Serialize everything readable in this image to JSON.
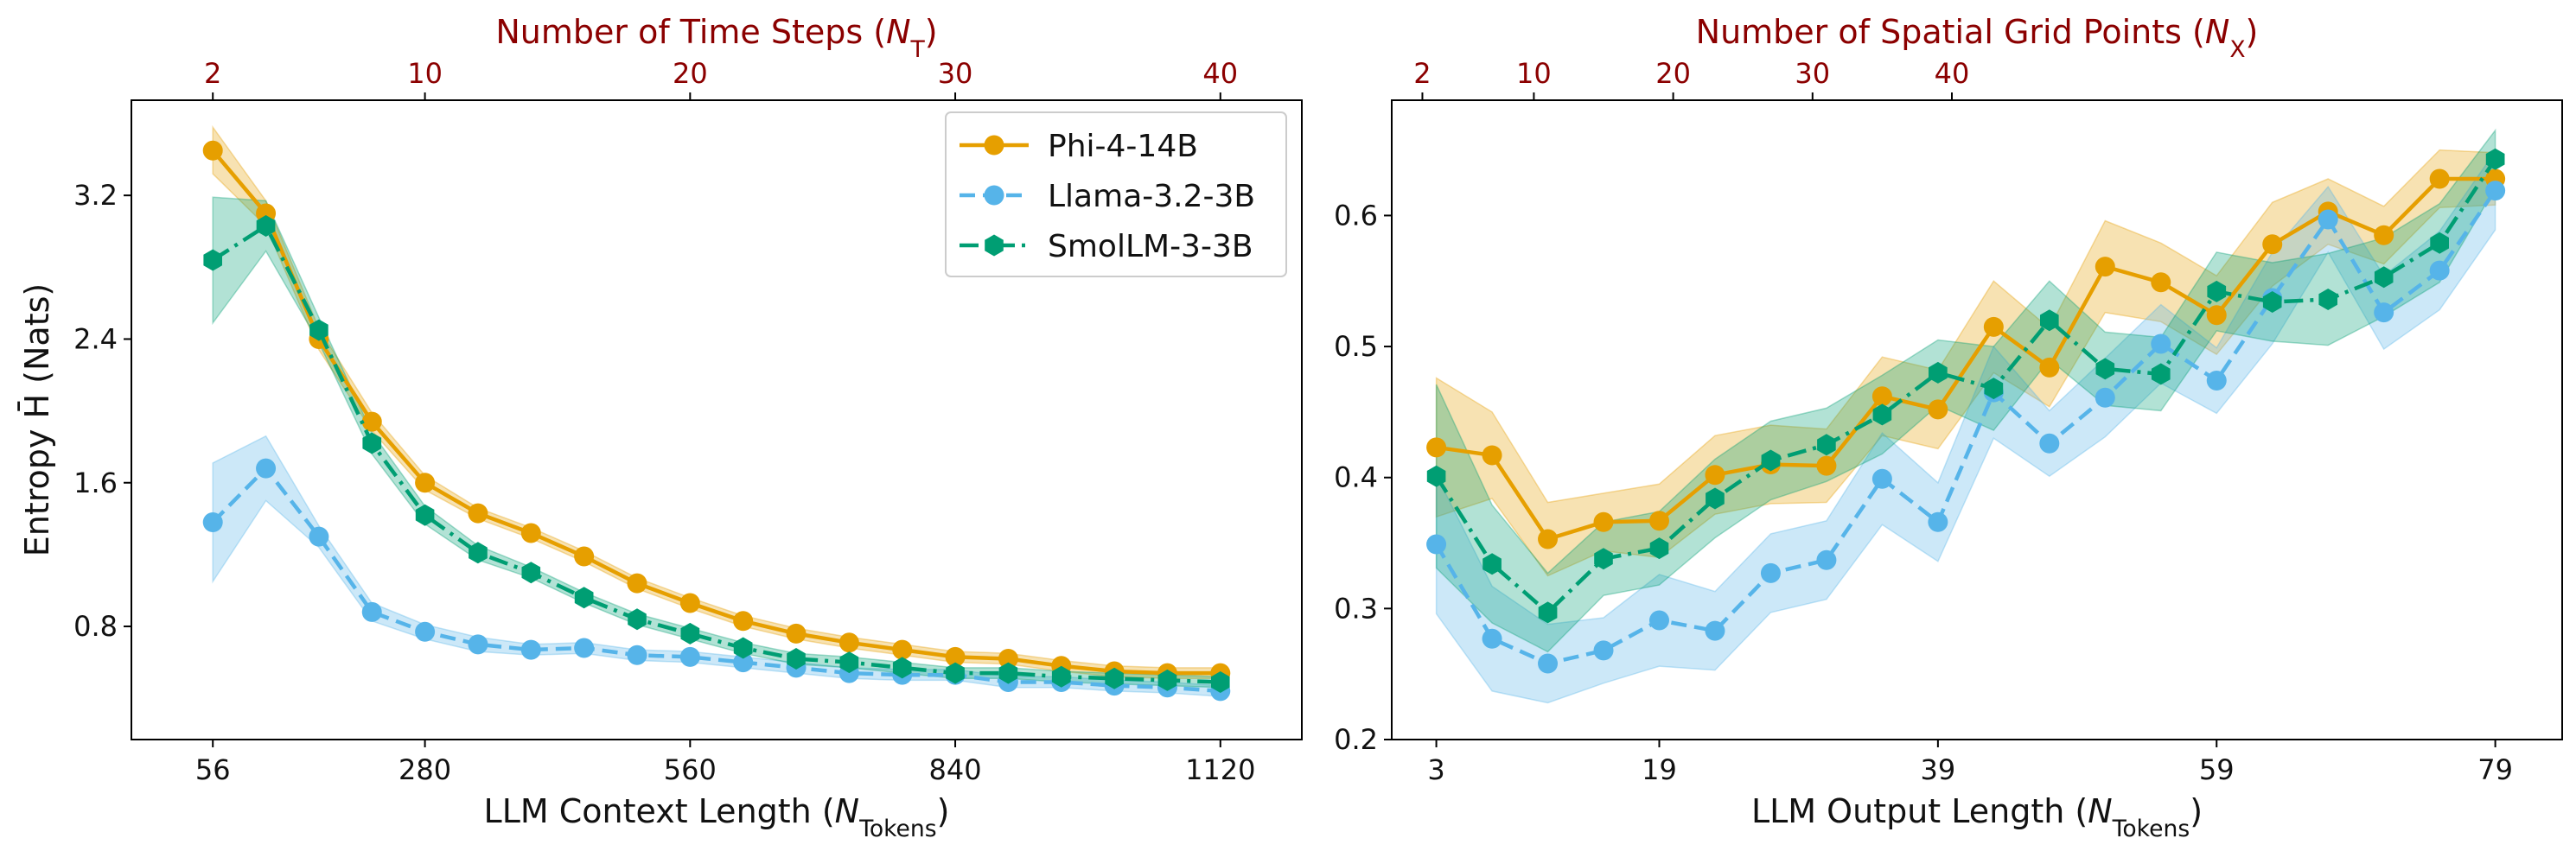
{
  "chart_data": [
    {
      "type": "line",
      "xlabel": "LLM Context Length (N",
      "xlabel_sub": "Tokens",
      "xlabel_close": ")",
      "ylabel": "Entropy H̄ (Nats)",
      "top_xlabel": "Number of Time Steps (N",
      "top_xlabel_sub": "T",
      "top_xlabel_close": ")",
      "xlim": [
        -30,
        1206
      ],
      "ylim": [
        0.17,
        3.73
      ],
      "xticks": [
        56,
        280,
        560,
        840,
        1120
      ],
      "xtick_labels": [
        "56",
        "280",
        "560",
        "840",
        "1120"
      ],
      "yticks": [
        0.8,
        1.6,
        2.4,
        3.2
      ],
      "ytick_labels": [
        "0.8",
        "1.6",
        "2.4",
        "3.2"
      ],
      "top_ticks": [
        2,
        10,
        20,
        30,
        40
      ],
      "top_tick_labels": [
        "2",
        "10",
        "20",
        "30",
        "40"
      ],
      "top_map": {
        "a": 56,
        "b": 28
      },
      "legend": "top-right",
      "x": [
        56,
        112,
        168,
        224,
        280,
        336,
        392,
        448,
        504,
        560,
        616,
        672,
        728,
        784,
        840,
        896,
        952,
        1008,
        1064,
        1120
      ],
      "series": [
        {
          "name": "Phi-4-14B",
          "color": "#E69F00",
          "dash": "",
          "marker": "circle",
          "values": [
            3.45,
            3.1,
            2.4,
            1.94,
            1.6,
            1.43,
            1.32,
            1.19,
            1.04,
            0.93,
            0.83,
            0.76,
            0.71,
            0.67,
            0.63,
            0.62,
            0.58,
            0.55,
            0.54,
            0.54
          ],
          "band": [
            0.13,
            0.07,
            0.06,
            0.05,
            0.04,
            0.03,
            0.03,
            0.03,
            0.03,
            0.03,
            0.03,
            0.03,
            0.03,
            0.03,
            0.03,
            0.03,
            0.03,
            0.03,
            0.03,
            0.03
          ]
        },
        {
          "name": "Llama-3.2-3B",
          "color": "#56B4E9",
          "dash": "18,9",
          "marker": "circle",
          "values": [
            1.38,
            1.68,
            1.3,
            0.88,
            0.77,
            0.7,
            0.67,
            0.68,
            0.64,
            0.63,
            0.6,
            0.57,
            0.54,
            0.53,
            0.53,
            0.49,
            0.49,
            0.47,
            0.46,
            0.44
          ],
          "band": [
            0.33,
            0.18,
            0.06,
            0.05,
            0.04,
            0.04,
            0.03,
            0.03,
            0.03,
            0.03,
            0.03,
            0.03,
            0.03,
            0.03,
            0.03,
            0.03,
            0.03,
            0.03,
            0.03,
            0.03
          ]
        },
        {
          "name": "SmolLM-3-3B",
          "color": "#009E73",
          "dash": "22,8,4,8",
          "marker": "hexagon",
          "values": [
            2.84,
            3.03,
            2.45,
            1.82,
            1.42,
            1.21,
            1.1,
            0.96,
            0.84,
            0.76,
            0.68,
            0.62,
            0.6,
            0.57,
            0.54,
            0.54,
            0.52,
            0.51,
            0.5,
            0.49
          ],
          "band": [
            0.35,
            0.14,
            0.07,
            0.06,
            0.05,
            0.04,
            0.03,
            0.03,
            0.03,
            0.03,
            0.03,
            0.03,
            0.03,
            0.03,
            0.03,
            0.03,
            0.03,
            0.03,
            0.03,
            0.03
          ]
        }
      ]
    },
    {
      "type": "line",
      "xlabel": "LLM Output Length (N",
      "xlabel_sub": "Tokens",
      "xlabel_close": ")",
      "top_xlabel": "Number of Spatial Grid Points (N",
      "top_xlabel_sub": "X",
      "top_xlabel_close": ")",
      "xlim": [
        -0.2,
        83.8
      ],
      "ylim": [
        0.2,
        0.688
      ],
      "xticks": [
        3,
        19,
        39,
        59,
        79
      ],
      "xtick_labels": [
        "3",
        "19",
        "39",
        "59",
        "79"
      ],
      "yticks": [
        0.2,
        0.3,
        0.4,
        0.5,
        0.6
      ],
      "ytick_labels": [
        "0.2",
        "0.3",
        "0.4",
        "0.5",
        "0.6"
      ],
      "top_ticks": [
        2,
        10,
        20,
        30,
        40
      ],
      "top_tick_labels": [
        "2",
        "10",
        "20",
        "30",
        "40"
      ],
      "top_map": {
        "a": 2,
        "b": 1
      },
      "x": [
        3,
        7,
        11,
        15,
        19,
        23,
        27,
        31,
        35,
        39,
        43,
        47,
        51,
        55,
        59,
        63,
        67,
        71,
        75,
        79
      ],
      "series": [
        {
          "name": "Phi-4-14B",
          "color": "#E69F00",
          "dash": "",
          "marker": "circle",
          "values": [
            0.423,
            0.417,
            0.353,
            0.366,
            0.367,
            0.402,
            0.41,
            0.409,
            0.462,
            0.452,
            0.515,
            0.484,
            0.561,
            0.549,
            0.524,
            0.578,
            0.603,
            0.585,
            0.628,
            0.628
          ],
          "band": [
            0.053,
            0.033,
            0.028,
            0.022,
            0.028,
            0.03,
            0.03,
            0.028,
            0.03,
            0.03,
            0.035,
            0.03,
            0.035,
            0.03,
            0.03,
            0.032,
            0.025,
            0.022,
            0.022,
            0.02
          ]
        },
        {
          "name": "Llama-3.2-3B",
          "color": "#56B4E9",
          "dash": "18,9",
          "marker": "circle",
          "values": [
            0.349,
            0.277,
            0.258,
            0.268,
            0.291,
            0.283,
            0.327,
            0.337,
            0.399,
            0.366,
            0.465,
            0.426,
            0.461,
            0.502,
            0.474,
            0.537,
            0.597,
            0.526,
            0.558,
            0.619
          ],
          "band": [
            0.053,
            0.04,
            0.03,
            0.025,
            0.035,
            0.03,
            0.03,
            0.03,
            0.035,
            0.03,
            0.035,
            0.025,
            0.03,
            0.03,
            0.025,
            0.035,
            0.025,
            0.028,
            0.03,
            0.03
          ]
        },
        {
          "name": "SmolLM-3-3B",
          "color": "#009E73",
          "dash": "22,8,4,8",
          "marker": "hexagon",
          "values": [
            0.401,
            0.334,
            0.297,
            0.338,
            0.346,
            0.384,
            0.413,
            0.425,
            0.448,
            0.48,
            0.468,
            0.52,
            0.483,
            0.479,
            0.542,
            0.534,
            0.536,
            0.553,
            0.579,
            0.643
          ],
          "band": [
            0.07,
            0.045,
            0.03,
            0.028,
            0.028,
            0.03,
            0.03,
            0.028,
            0.03,
            0.025,
            0.032,
            0.03,
            0.028,
            0.028,
            0.03,
            0.03,
            0.035,
            0.03,
            0.03,
            0.022
          ]
        }
      ]
    }
  ]
}
